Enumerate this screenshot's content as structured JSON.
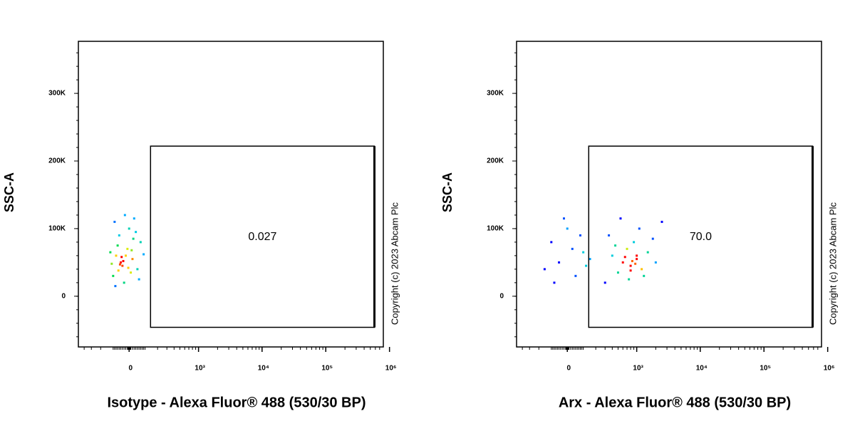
{
  "chart_data": [
    {
      "type": "scatter",
      "xscale": "biexponential",
      "xlabel": "Isotype - Alexa Fluor® 488 (530/30 BP)",
      "ylabel": "SSC-A",
      "annotation": "Copyright (c) 2023 Abcam Plc",
      "xlim": [
        -500,
        800000
      ],
      "ylim": [
        -75000,
        377000
      ],
      "xticks": [
        0,
        {
          "value": 1000,
          "label": "10³"
        },
        {
          "value": 10000,
          "label": "10⁴"
        },
        {
          "value": 100000,
          "label": "10⁵"
        },
        {
          "value": 1000000,
          "label": "10⁶"
        }
      ],
      "yticks": [
        0,
        {
          "value": 100000,
          "label": "100K"
        },
        {
          "value": 200000,
          "label": "200K"
        },
        {
          "value": 300000,
          "label": "300K"
        }
      ],
      "gate": {
        "xlim": [
          140,
          580000
        ],
        "ylim": [
          -46000,
          222000
        ],
        "value": 0.027
      },
      "x": [
        -80,
        -40,
        -10,
        -100,
        20,
        -60,
        50,
        -120,
        0,
        -30,
        70,
        -90,
        30,
        -50,
        10,
        -20,
        -70,
        40,
        -110,
        60,
        -35,
        -5,
        15,
        -65,
        -45,
        25,
        -85,
        90,
        -25,
        -55
      ],
      "y": [
        60000,
        45000,
        70000,
        30000,
        55000,
        90000,
        40000,
        65000,
        100000,
        20000,
        80000,
        110000,
        115000,
        50000,
        35000,
        60000,
        75000,
        95000,
        48000,
        25000,
        52000,
        42000,
        68000,
        38000,
        58000,
        85000,
        15000,
        62000,
        120000,
        47000
      ]
    },
    {
      "type": "scatter",
      "xscale": "biexponential",
      "xlabel": "Arx - Alexa Fluor® 488 (530/30 BP)",
      "ylabel": "SSC-A",
      "annotation": "Copyright (c) 2023 Abcam Plc",
      "xlim": [
        -500,
        800000
      ],
      "ylim": [
        -75000,
        377000
      ],
      "xticks": [
        0,
        {
          "value": 1000,
          "label": "10³"
        },
        {
          "value": 10000,
          "label": "10⁴"
        },
        {
          "value": 100000,
          "label": "10⁵"
        },
        {
          "value": 1000000,
          "label": "10⁶"
        }
      ],
      "yticks": [
        0,
        {
          "value": 100000,
          "label": "100K"
        },
        {
          "value": 200000,
          "label": "200K"
        },
        {
          "value": 300000,
          "label": "300K"
        }
      ],
      "gate": {
        "xlim": [
          140,
          580000
        ],
        "ylim": [
          -46000,
          222000
        ],
        "value": 70,
        "value_label": "70.0"
      },
      "x": [
        -100,
        -50,
        0,
        50,
        100,
        -150,
        -20,
        80,
        150,
        -80,
        30,
        120,
        400,
        600,
        800,
        1000,
        700,
        500,
        900,
        1200,
        1500,
        350,
        2000,
        750,
        1100,
        650,
        850,
        950,
        450,
        1800,
        2500,
        300,
        1300,
        550,
        1000,
        800
      ],
      "y": [
        80000,
        50000,
        100000,
        30000,
        65000,
        40000,
        115000,
        90000,
        55000,
        20000,
        70000,
        45000,
        60000,
        50000,
        45000,
        55000,
        70000,
        35000,
        80000,
        40000,
        65000,
        90000,
        50000,
        25000,
        100000,
        58000,
        52000,
        48000,
        75000,
        85000,
        110000,
        20000,
        30000,
        115000,
        60000,
        38000
      ]
    }
  ]
}
